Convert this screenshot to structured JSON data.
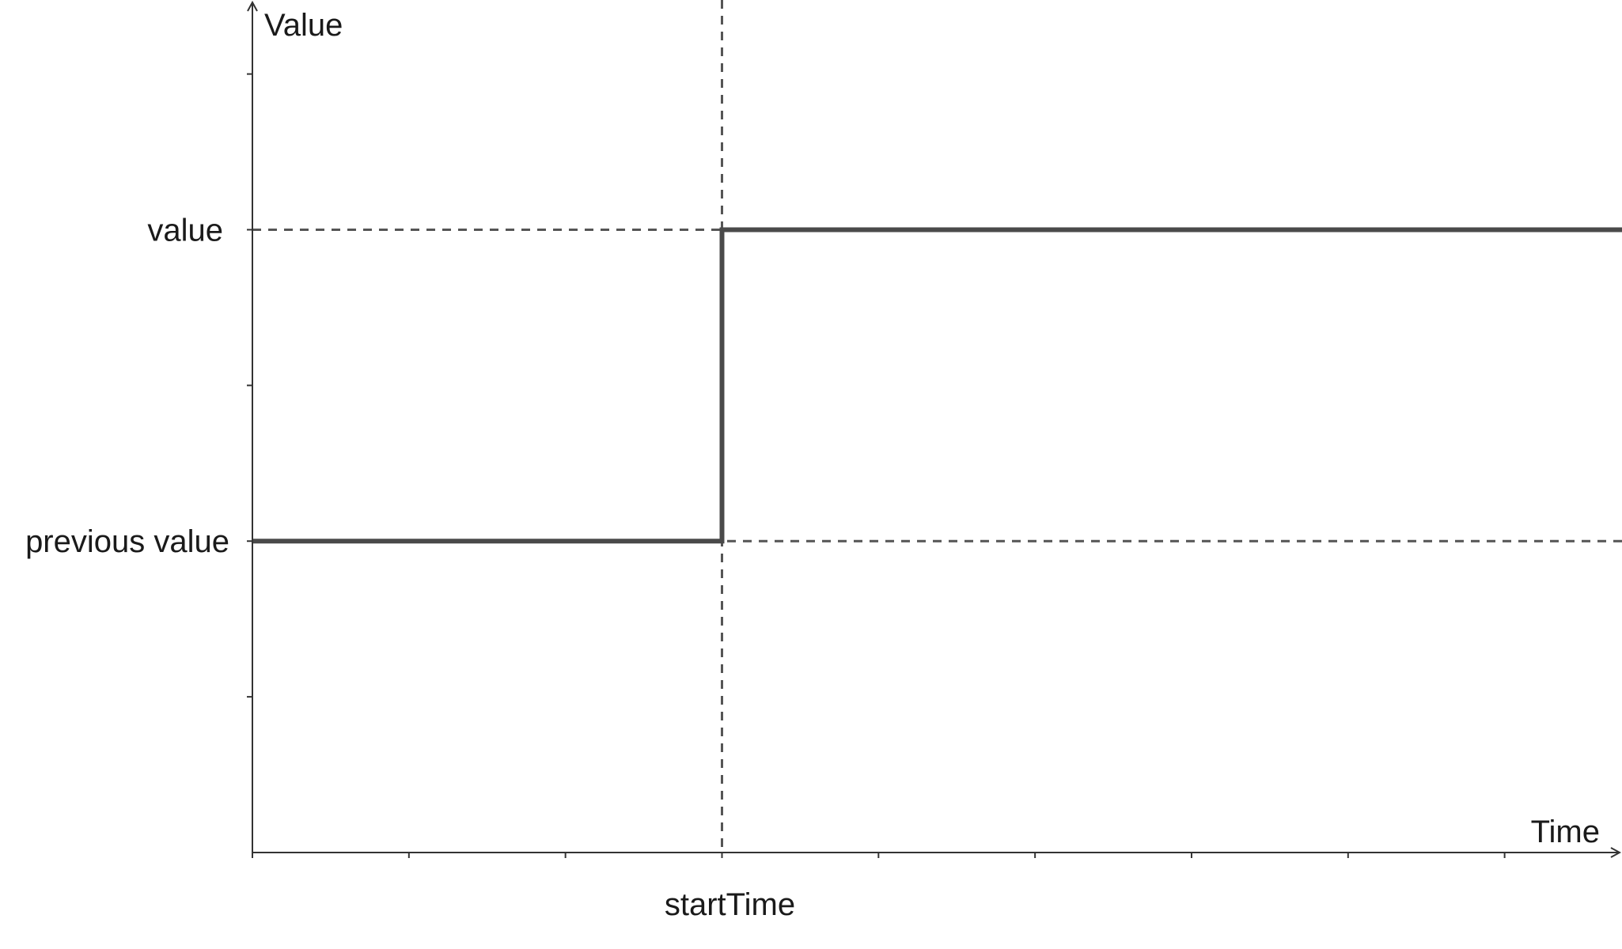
{
  "chart_data": {
    "type": "line",
    "xlabel": "Time",
    "ylabel": "Value",
    "xlim": [
      0,
      8.75
    ],
    "ylim": [
      0,
      5.45
    ],
    "x_tick_values": [
      0,
      1,
      2,
      3,
      4,
      5,
      6,
      7,
      8
    ],
    "x_tick_labels": [
      {
        "x": 3,
        "label": "startTime"
      }
    ],
    "y_tick_values": [
      1,
      2,
      3,
      4,
      5
    ],
    "y_tick_labels": [
      {
        "y": 2,
        "label": "previous value"
      },
      {
        "y": 4,
        "label": "value"
      }
    ],
    "reference_lines": {
      "vertical": [
        3
      ],
      "horizontal": [
        2,
        4
      ]
    },
    "series": [
      {
        "values": [
          [
            0,
            2
          ],
          [
            3,
            2
          ],
          [
            3,
            4
          ],
          [
            8.75,
            4
          ]
        ]
      }
    ],
    "colors": {
      "line": "#4a4a4a",
      "axis": "#333333",
      "reference": "#555555"
    },
    "grid": false
  }
}
